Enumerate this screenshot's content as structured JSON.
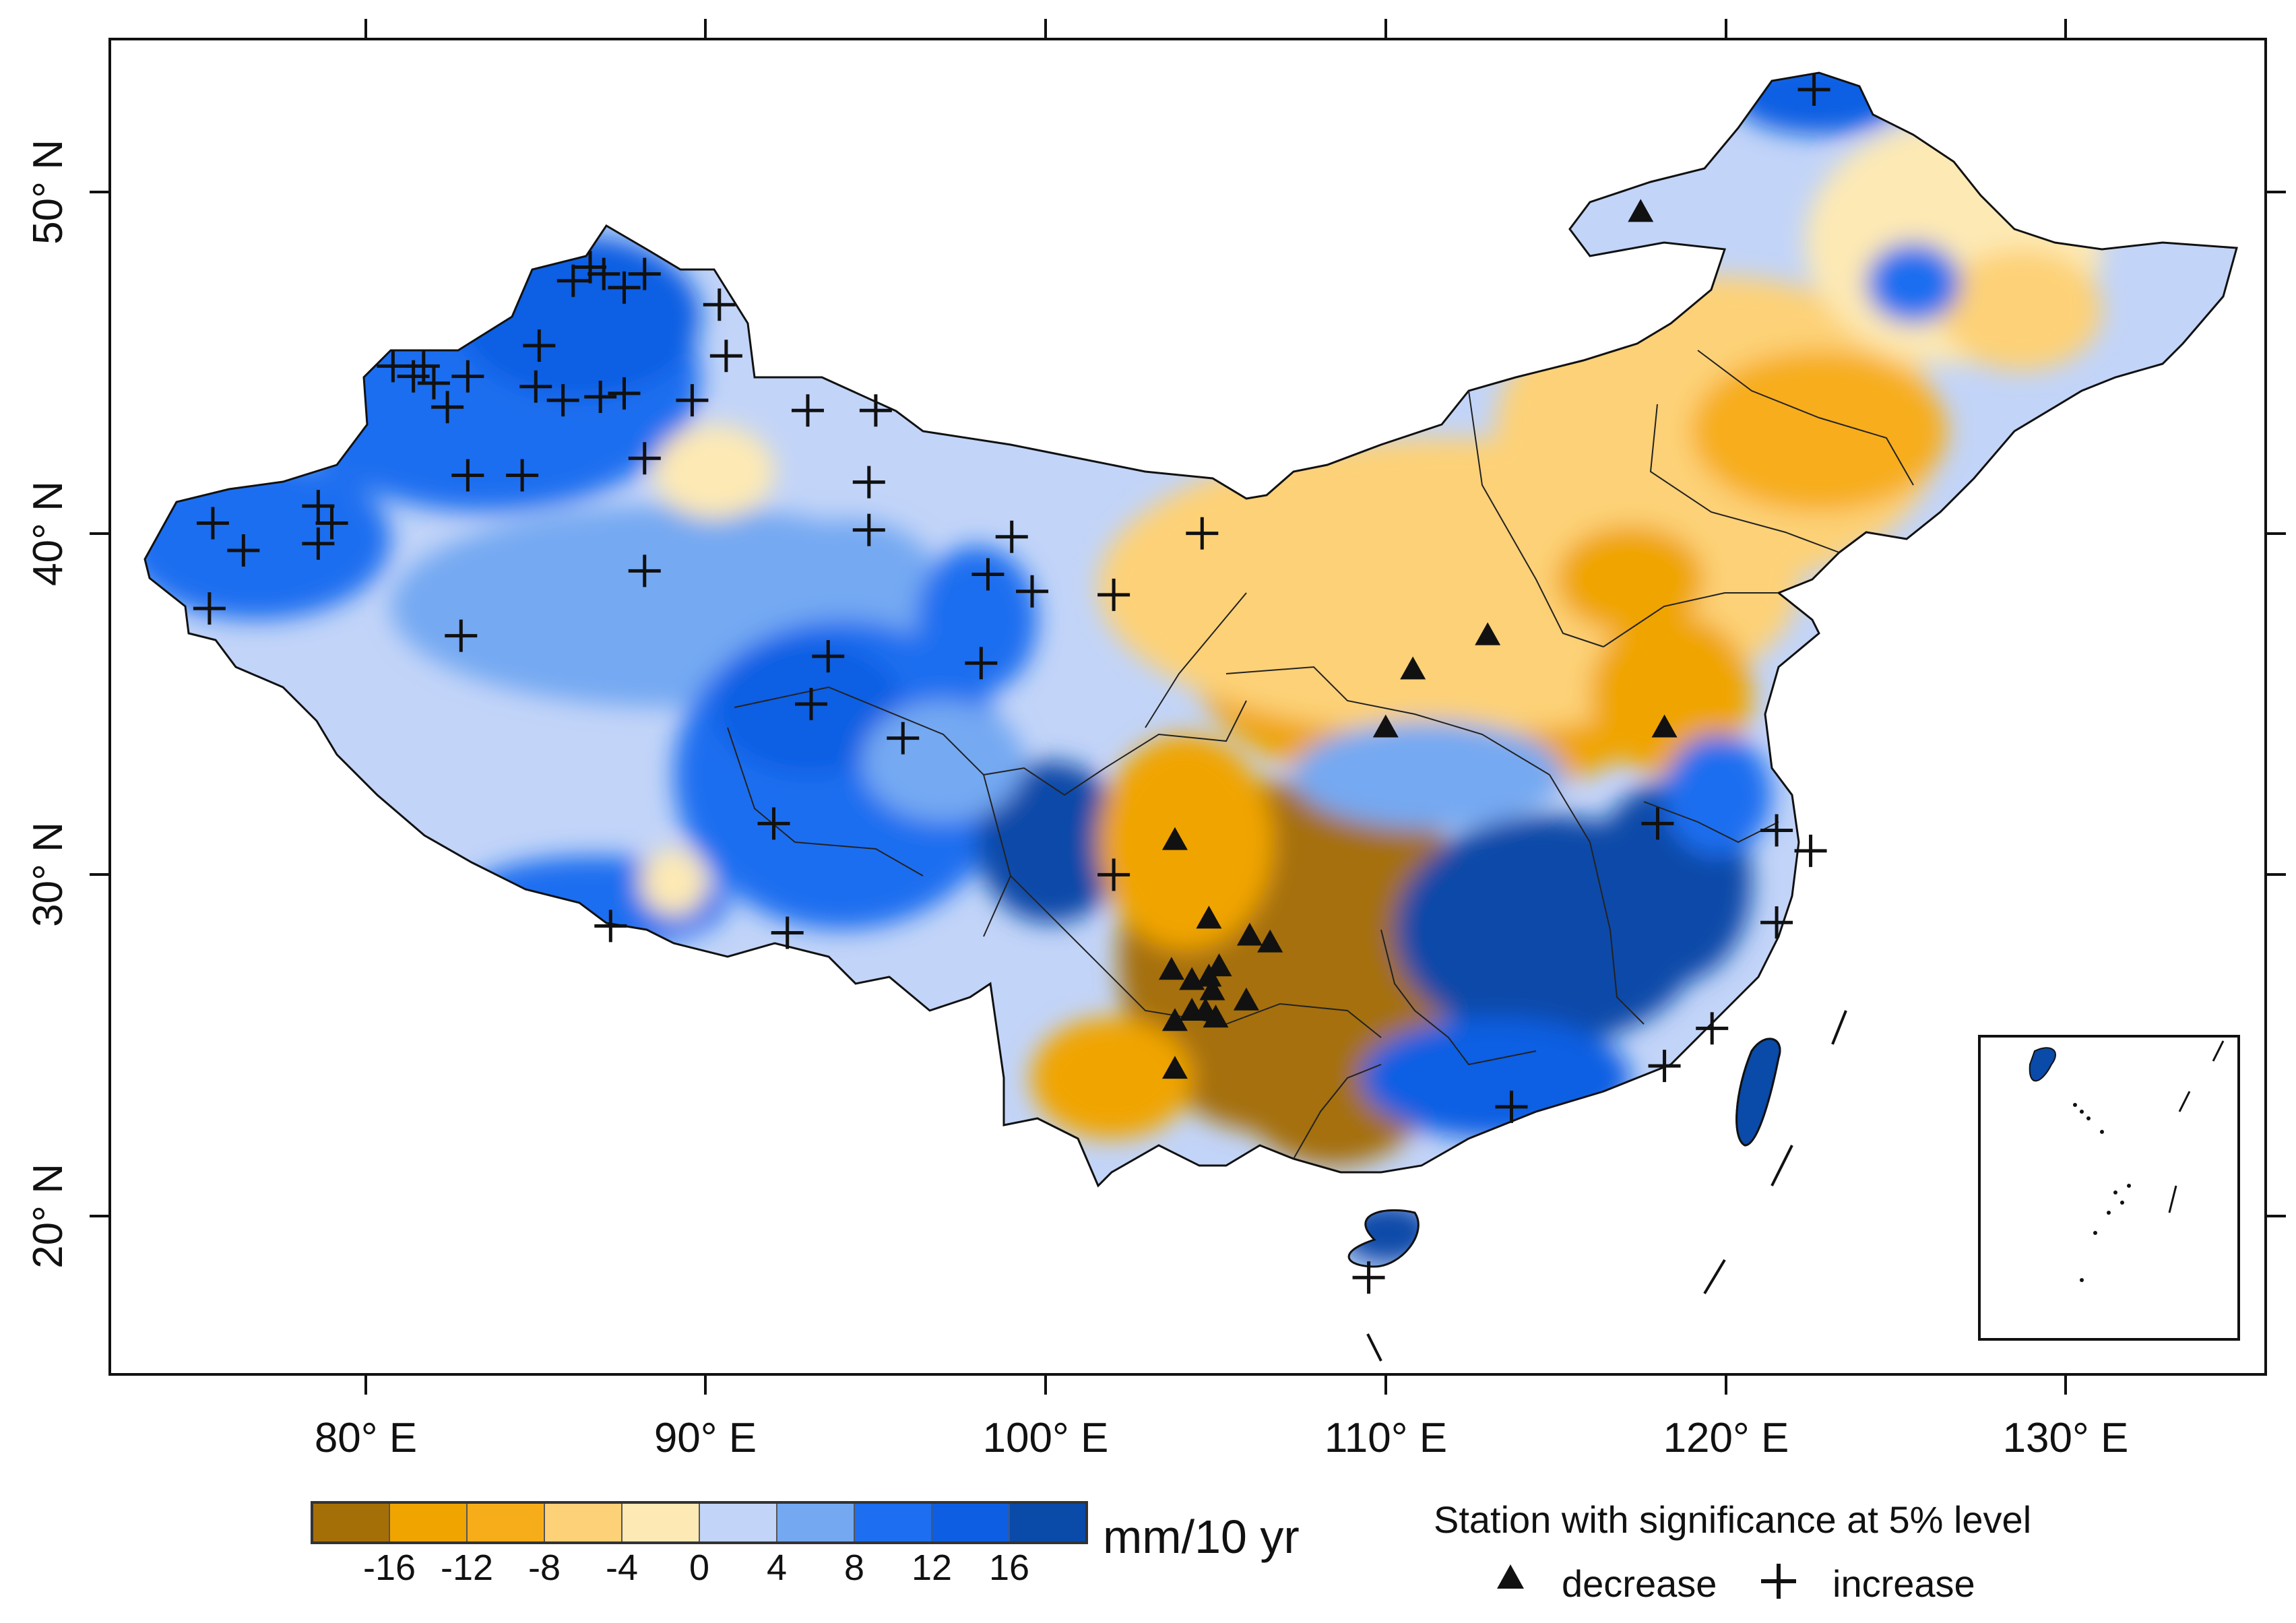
{
  "map": {
    "colorbar": {
      "unit": "mm/10 yr",
      "tick_labels": [
        "-16",
        "-12",
        "-8",
        "-4",
        "0",
        "4",
        "8",
        "12",
        "16"
      ],
      "colors": [
        "#a56f08",
        "#f0a400",
        "#f7ad1a",
        "#fdd177",
        "#fde9b4",
        "#c2d4f8",
        "#74a9f2",
        "#1d6ef0",
        "#0d5ee3",
        "#0a4aa8"
      ]
    },
    "axes": {
      "lon_labels": [
        "80° E",
        "90° E",
        "100° E",
        "110° E",
        "120° E",
        "130° E"
      ],
      "lat_labels": [
        "50° N",
        "40° N",
        "30° N",
        "20° N"
      ]
    },
    "station_legend": {
      "title": "Station with significance at 5% level",
      "decrease_label": "decrease",
      "increase_label": "increase"
    },
    "stations": {
      "increase": [
        [
          75.5,
          40.3
        ],
        [
          76.4,
          39.5
        ],
        [
          75.4,
          37.8
        ],
        [
          78.6,
          40.8
        ],
        [
          79.0,
          40.3
        ],
        [
          78.6,
          39.7
        ],
        [
          80.8,
          44.9
        ],
        [
          81.4,
          44.6
        ],
        [
          81.7,
          44.9
        ],
        [
          82.0,
          44.4
        ],
        [
          82.4,
          43.7
        ],
        [
          83.0,
          44.6
        ],
        [
          83.0,
          41.7
        ],
        [
          84.6,
          41.7
        ],
        [
          85.0,
          44.3
        ],
        [
          85.1,
          45.5
        ],
        [
          85.8,
          43.9
        ],
        [
          86.1,
          47.4
        ],
        [
          86.6,
          47.8
        ],
        [
          87.0,
          47.6
        ],
        [
          87.6,
          47.2
        ],
        [
          87.6,
          44.1
        ],
        [
          86.9,
          44.0
        ],
        [
          88.2,
          47.6
        ],
        [
          90.4,
          46.7
        ],
        [
          90.6,
          45.2
        ],
        [
          89.6,
          43.9
        ],
        [
          88.2,
          42.2
        ],
        [
          88.2,
          38.9
        ],
        [
          82.8,
          37.0
        ],
        [
          93.0,
          43.6
        ],
        [
          95.0,
          43.6
        ],
        [
          94.8,
          41.5
        ],
        [
          94.8,
          40.1
        ],
        [
          99.0,
          39.9
        ],
        [
          98.3,
          38.8
        ],
        [
          99.6,
          38.3
        ],
        [
          102.0,
          38.2
        ],
        [
          104.6,
          40.0
        ],
        [
          98.1,
          36.2
        ],
        [
          93.6,
          36.4
        ],
        [
          93.1,
          35.0
        ],
        [
          95.8,
          34.0
        ],
        [
          92.0,
          31.5
        ],
        [
          92.4,
          28.3
        ],
        [
          87.2,
          28.5
        ],
        [
          102.0,
          30.0
        ],
        [
          122.6,
          53.0
        ],
        [
          118.0,
          31.5
        ],
        [
          121.5,
          31.3
        ],
        [
          122.5,
          30.7
        ],
        [
          121.5,
          28.6
        ],
        [
          119.6,
          25.5
        ],
        [
          118.2,
          24.4
        ],
        [
          113.7,
          23.2
        ],
        [
          109.5,
          18.2
        ]
      ],
      "decrease": [
        [
          117.5,
          49.4
        ],
        [
          113.0,
          37.0
        ],
        [
          110.8,
          36.0
        ],
        [
          110.0,
          34.3
        ],
        [
          118.2,
          34.3
        ],
        [
          103.8,
          31.0
        ],
        [
          104.8,
          28.7
        ],
        [
          106.0,
          28.2
        ],
        [
          106.6,
          28.0
        ],
        [
          103.7,
          27.2
        ],
        [
          104.3,
          26.9
        ],
        [
          104.8,
          27.0
        ],
        [
          105.1,
          27.3
        ],
        [
          104.9,
          26.6
        ],
        [
          104.3,
          26.0
        ],
        [
          104.7,
          26.0
        ],
        [
          105.0,
          25.8
        ],
        [
          103.8,
          25.7
        ],
        [
          105.9,
          26.3
        ],
        [
          103.8,
          24.3
        ]
      ]
    }
  }
}
